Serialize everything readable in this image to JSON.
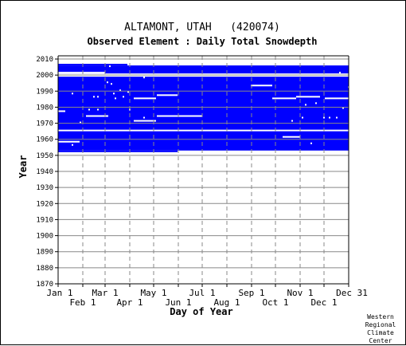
{
  "chart_data": {
    "type": "heatmap",
    "title": "ALTAMONT, UTAH   (420074)",
    "subtitle": "Observed Element : Daily Total Snowdepth",
    "xlabel": "Day of Year",
    "ylabel": "Year",
    "credit": [
      "Western",
      "Regional",
      "Climate",
      "Center"
    ],
    "xlim": [
      1,
      366
    ],
    "ylim": [
      1870,
      2012
    ],
    "x_ticks_upper": [
      {
        "label": "Jan 1",
        "day": 1
      },
      {
        "label": "Mar 1",
        "day": 60
      },
      {
        "label": "May 1",
        "day": 121
      },
      {
        "label": "Jul 1",
        "day": 182
      },
      {
        "label": "Sep 1",
        "day": 244
      },
      {
        "label": "Nov 1",
        "day": 305
      },
      {
        "label": "Dec 31",
        "day": 366
      }
    ],
    "x_ticks_lower": [
      {
        "label": "Feb 1",
        "day": 32
      },
      {
        "label": "Apr 1",
        "day": 91
      },
      {
        "label": "Jun 1",
        "day": 152
      },
      {
        "label": "Aug 1",
        "day": 213
      },
      {
        "label": "Oct 1",
        "day": 274
      },
      {
        "label": "Dec 1",
        "day": 335
      }
    ],
    "y_ticks": [
      1870,
      1880,
      1890,
      1900,
      1910,
      1920,
      1930,
      1940,
      1950,
      1960,
      1970,
      1980,
      1990,
      2000,
      2010
    ],
    "grid": true,
    "observed_color": "#0000ff",
    "observed_blocks": [
      {
        "year_start": 1952,
        "year_end": 1953,
        "day_start": 1,
        "day_end": 151
      },
      {
        "year_start": 1953,
        "year_end": 2006,
        "day_start": 1,
        "day_end": 366
      },
      {
        "year_start": 2006,
        "year_end": 2007,
        "day_start": 1,
        "day_end": 88
      }
    ],
    "missing_segments": [
      {
        "year": 2001,
        "day_start": 1,
        "day_end": 60
      },
      {
        "year": 2000,
        "day_start": 1,
        "day_end": 366
      },
      {
        "year": 1999,
        "day_start": 1,
        "day_end": 366
      },
      {
        "year": 1993,
        "day_start": 243,
        "day_end": 270
      },
      {
        "year": 1987,
        "day_start": 125,
        "day_end": 151
      },
      {
        "year": 1986,
        "day_start": 300,
        "day_end": 330
      },
      {
        "year": 1985,
        "day_start": 96,
        "day_end": 124
      },
      {
        "year": 1985,
        "day_start": 270,
        "day_end": 300
      },
      {
        "year": 1985,
        "day_start": 336,
        "day_end": 366
      },
      {
        "year": 1977,
        "day_start": 1,
        "day_end": 10
      },
      {
        "year": 1974,
        "day_start": 36,
        "day_end": 64
      },
      {
        "year": 1974,
        "day_start": 125,
        "day_end": 182
      },
      {
        "year": 1971,
        "day_start": 96,
        "day_end": 124
      },
      {
        "year": 1965,
        "day_start": 1,
        "day_end": 366
      },
      {
        "year": 1961,
        "day_start": 283,
        "day_end": 305
      },
      {
        "year": 1958,
        "day_start": 1,
        "day_end": 28
      }
    ],
    "missing_days": [
      {
        "year": 2005,
        "day": 66
      },
      {
        "year": 2001,
        "day": 355
      },
      {
        "year": 1998,
        "day": 109
      },
      {
        "year": 1995,
        "day": 63
      },
      {
        "year": 1994,
        "day": 68
      },
      {
        "year": 1992,
        "day": 367
      },
      {
        "year": 1990,
        "day": 79
      },
      {
        "year": 1989,
        "day": 89
      },
      {
        "year": 1988,
        "day": 19
      },
      {
        "year": 1988,
        "day": 71
      },
      {
        "year": 1986,
        "day": 46
      },
      {
        "year": 1986,
        "day": 51
      },
      {
        "year": 1986,
        "day": 83
      },
      {
        "year": 1985,
        "day": 73
      },
      {
        "year": 1982,
        "day": 325
      },
      {
        "year": 1981,
        "day": 312
      },
      {
        "year": 1979,
        "day": 359
      },
      {
        "year": 1978,
        "day": 40
      },
      {
        "year": 1978,
        "day": 51
      },
      {
        "year": 1978,
        "day": 91
      },
      {
        "year": 1973,
        "day": 109
      },
      {
        "year": 1973,
        "day": 308
      },
      {
        "year": 1973,
        "day": 335
      },
      {
        "year": 1973,
        "day": 342
      },
      {
        "year": 1973,
        "day": 351
      },
      {
        "year": 1971,
        "day": 295
      },
      {
        "year": 1970,
        "day": 29
      },
      {
        "year": 1957,
        "day": 319
      },
      {
        "year": 1956,
        "day": 19
      }
    ]
  }
}
